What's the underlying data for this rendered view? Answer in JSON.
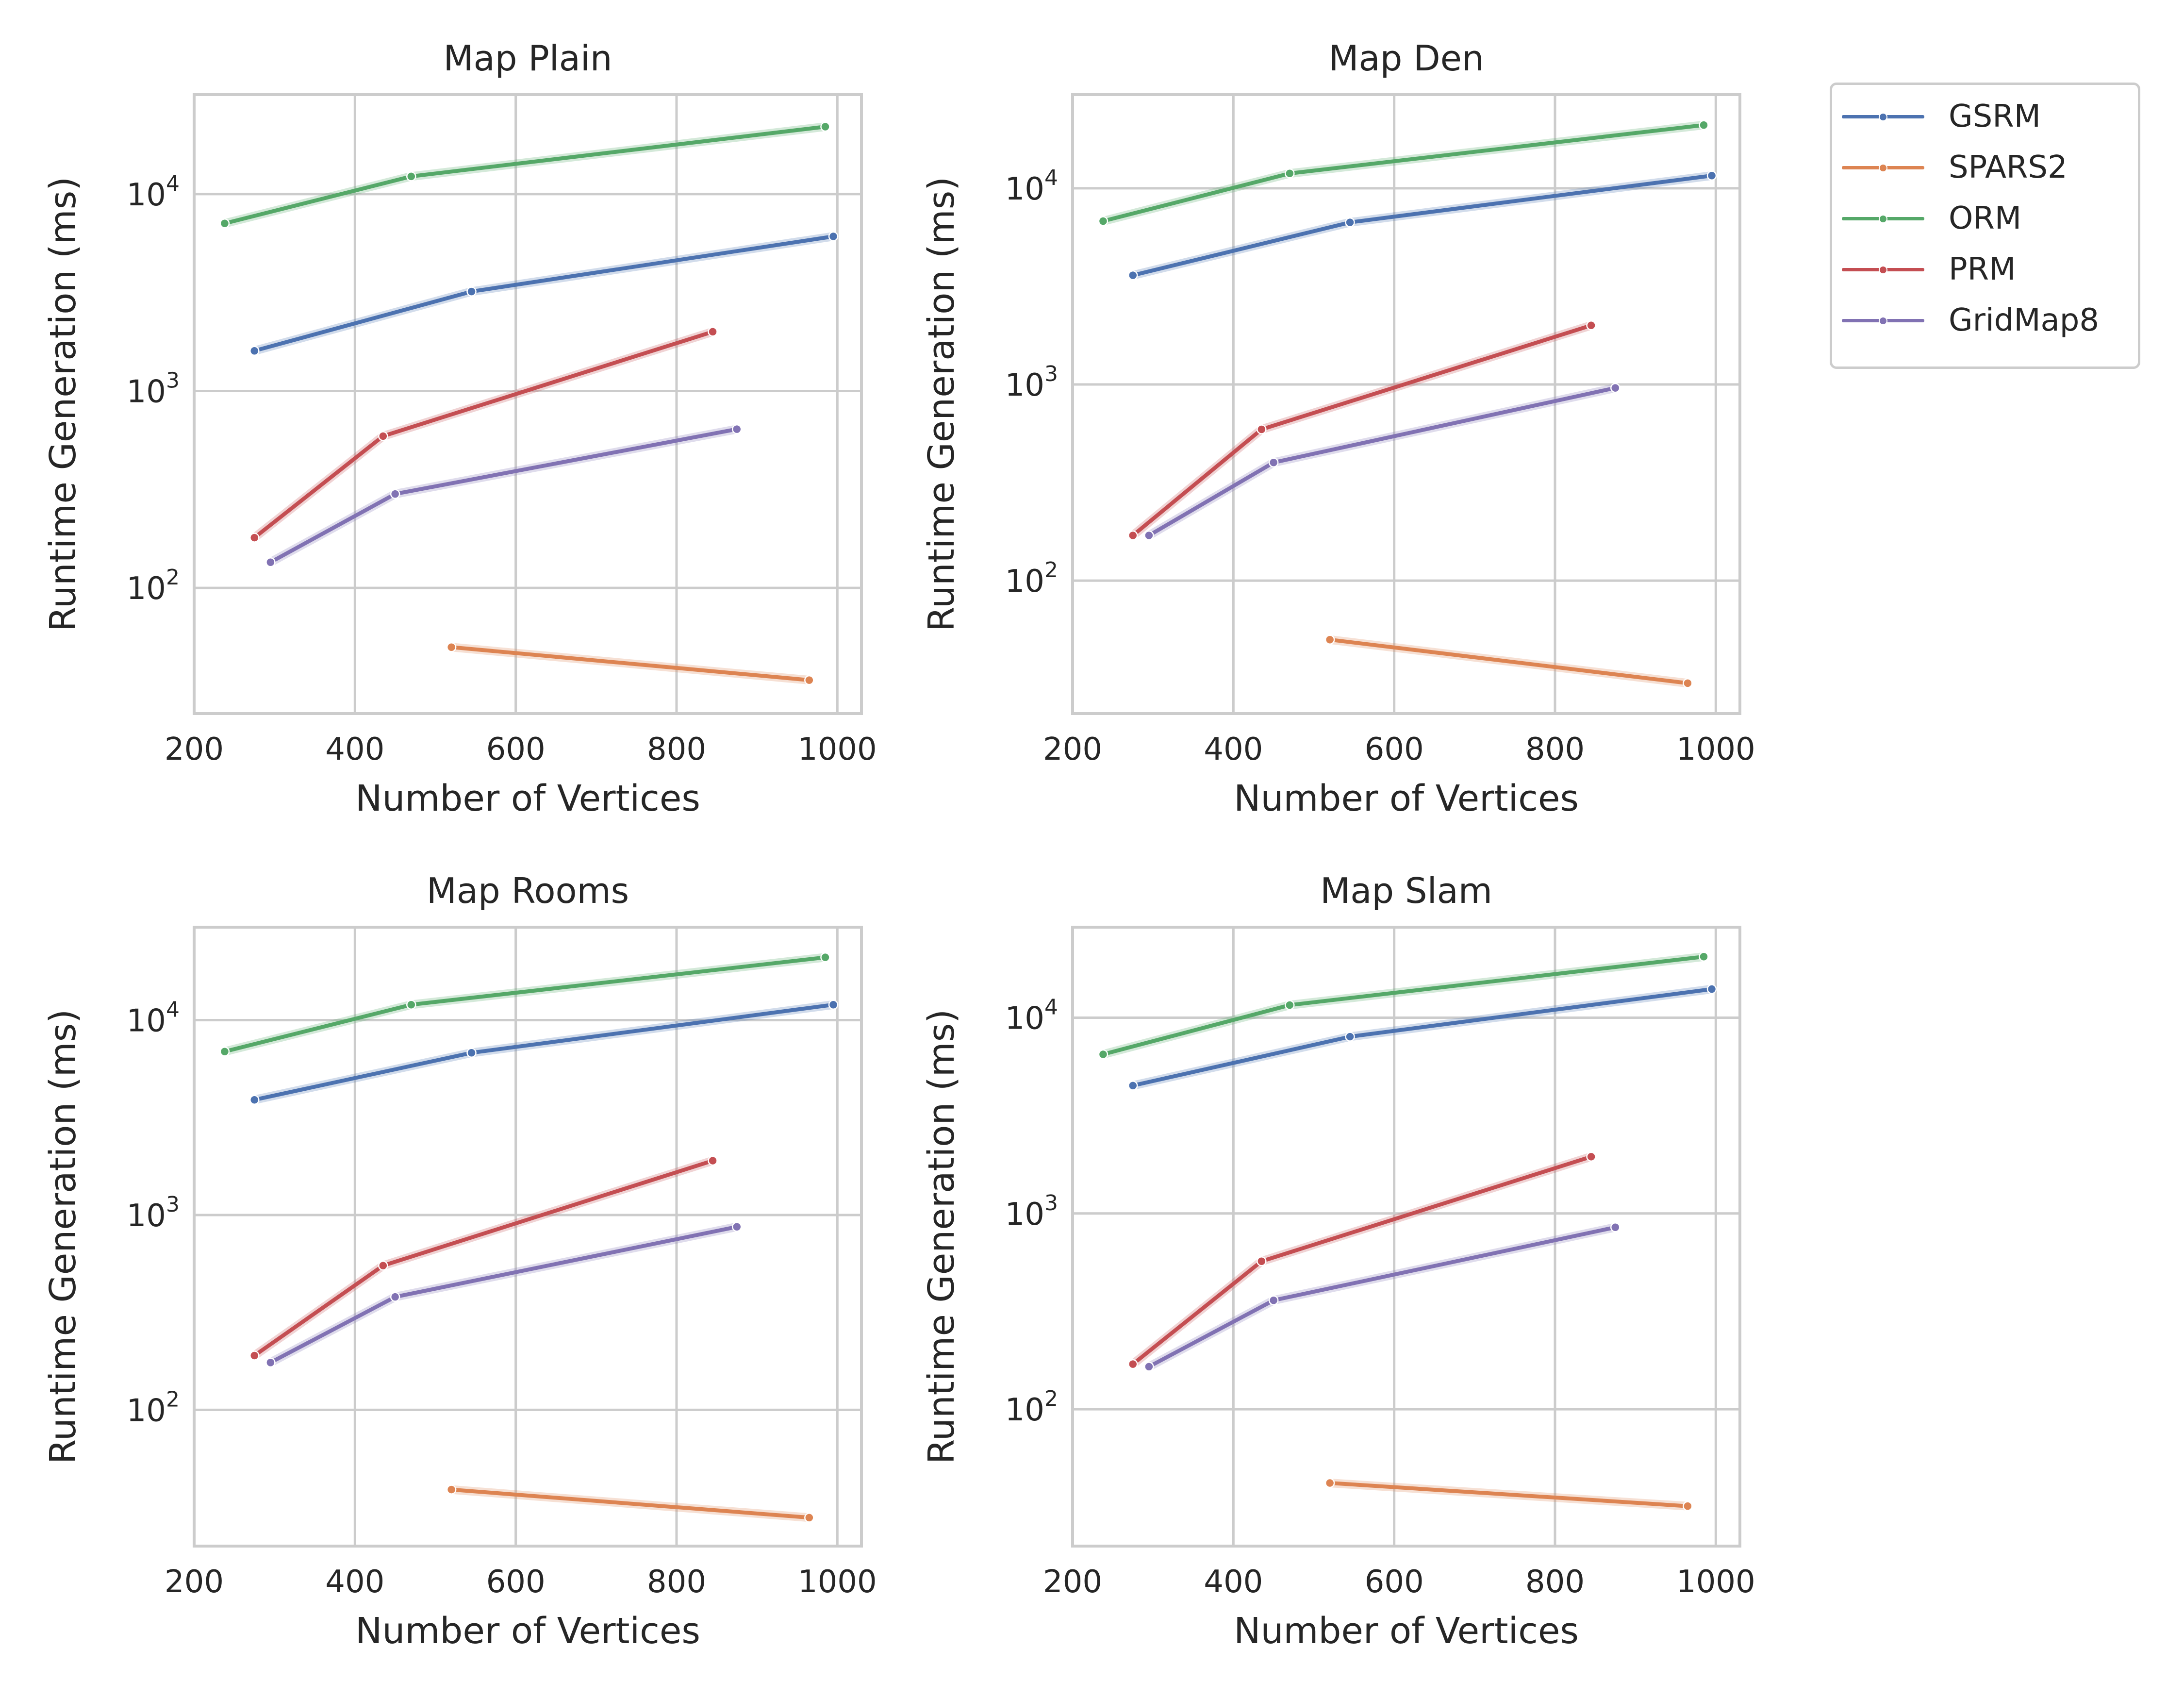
{
  "chart_data": [
    {
      "type": "line",
      "title": "Map Plain",
      "xlabel": "Number of Vertices",
      "ylabel": "Runtime Generation (ms)",
      "yscale": "log",
      "xlim": [
        200,
        1030
      ],
      "ylim": [
        23,
        32000
      ],
      "xticks": [
        "200",
        "400",
        "600",
        "800",
        "1000"
      ],
      "yticks": [
        {
          "base": "10",
          "exp": "2",
          "value": 100
        },
        {
          "base": "10",
          "exp": "3",
          "value": 1000
        },
        {
          "base": "10",
          "exp": "4",
          "value": 10000
        }
      ],
      "grid": true,
      "series": [
        {
          "name": "GSRM",
          "x": [
            275,
            545,
            995
          ],
          "y": [
            1600,
            3200,
            6100
          ]
        },
        {
          "name": "SPARS2",
          "x": [
            520,
            965
          ],
          "y": [
            50,
            34
          ]
        },
        {
          "name": "ORM",
          "x": [
            238,
            470,
            985
          ],
          "y": [
            7100,
            12300,
            22000
          ]
        },
        {
          "name": "PRM",
          "x": [
            275,
            435,
            845
          ],
          "y": [
            180,
            590,
            2000
          ]
        },
        {
          "name": "GridMap8",
          "x": [
            295,
            450,
            875
          ],
          "y": [
            135,
            300,
            640
          ]
        }
      ]
    },
    {
      "type": "line",
      "title": "Map Den",
      "xlabel": "Number of Vertices",
      "ylabel": "Runtime Generation (ms)",
      "yscale": "log",
      "xlim": [
        200,
        1030
      ],
      "ylim": [
        21,
        30000
      ],
      "xticks": [
        "200",
        "400",
        "600",
        "800",
        "1000"
      ],
      "yticks": [
        {
          "base": "10",
          "exp": "2",
          "value": 100
        },
        {
          "base": "10",
          "exp": "3",
          "value": 1000
        },
        {
          "base": "10",
          "exp": "4",
          "value": 10000
        }
      ],
      "grid": true,
      "series": [
        {
          "name": "GSRM",
          "x": [
            275,
            545,
            995
          ],
          "y": [
            3600,
            6700,
            11600
          ]
        },
        {
          "name": "SPARS2",
          "x": [
            520,
            965
          ],
          "y": [
            50,
            30
          ]
        },
        {
          "name": "ORM",
          "x": [
            238,
            470,
            985
          ],
          "y": [
            6800,
            11900,
            21000
          ]
        },
        {
          "name": "PRM",
          "x": [
            275,
            435,
            845
          ],
          "y": [
            170,
            590,
            2000
          ]
        },
        {
          "name": "GridMap8",
          "x": [
            295,
            450,
            875
          ],
          "y": [
            170,
            400,
            960
          ]
        }
      ]
    },
    {
      "type": "line",
      "title": "Map Rooms",
      "xlabel": "Number of Vertices",
      "ylabel": "Runtime Generation (ms)",
      "yscale": "log",
      "xlim": [
        200,
        1030
      ],
      "ylim": [
        20,
        30000
      ],
      "xticks": [
        "200",
        "400",
        "600",
        "800",
        "1000"
      ],
      "yticks": [
        {
          "base": "10",
          "exp": "2",
          "value": 100
        },
        {
          "base": "10",
          "exp": "3",
          "value": 1000
        },
        {
          "base": "10",
          "exp": "4",
          "value": 10000
        }
      ],
      "grid": true,
      "series": [
        {
          "name": "GSRM",
          "x": [
            275,
            545,
            995
          ],
          "y": [
            3900,
            6800,
            12000
          ]
        },
        {
          "name": "SPARS2",
          "x": [
            520,
            965
          ],
          "y": [
            39,
            28
          ]
        },
        {
          "name": "ORM",
          "x": [
            238,
            470,
            985
          ],
          "y": [
            6900,
            12000,
            21000
          ]
        },
        {
          "name": "PRM",
          "x": [
            275,
            435,
            845
          ],
          "y": [
            190,
            550,
            1900
          ]
        },
        {
          "name": "GridMap8",
          "x": [
            295,
            450,
            875
          ],
          "y": [
            175,
            380,
            870
          ]
        }
      ]
    },
    {
      "type": "line",
      "title": "Map Slam",
      "xlabel": "Number of Vertices",
      "ylabel": "Runtime Generation (ms)",
      "yscale": "log",
      "xlim": [
        200,
        1030
      ],
      "ylim": [
        20,
        29000
      ],
      "xticks": [
        "200",
        "400",
        "600",
        "800",
        "1000"
      ],
      "yticks": [
        {
          "base": "10",
          "exp": "2",
          "value": 100
        },
        {
          "base": "10",
          "exp": "3",
          "value": 1000
        },
        {
          "base": "10",
          "exp": "4",
          "value": 10000
        }
      ],
      "grid": true,
      "series": [
        {
          "name": "GSRM",
          "x": [
            275,
            545,
            995
          ],
          "y": [
            4500,
            8000,
            14000
          ]
        },
        {
          "name": "SPARS2",
          "x": [
            520,
            965
          ],
          "y": [
            42,
            32
          ]
        },
        {
          "name": "ORM",
          "x": [
            238,
            470,
            985
          ],
          "y": [
            6500,
            11600,
            20500
          ]
        },
        {
          "name": "PRM",
          "x": [
            275,
            435,
            845
          ],
          "y": [
            170,
            570,
            1950
          ]
        },
        {
          "name": "GridMap8",
          "x": [
            295,
            450,
            875
          ],
          "y": [
            165,
            360,
            850
          ]
        }
      ]
    }
  ],
  "legend": {
    "placement": "outside-top-right",
    "items": [
      {
        "label": "GSRM",
        "color": "#4c72b0"
      },
      {
        "label": "SPARS2",
        "color": "#dd8452"
      },
      {
        "label": "ORM",
        "color": "#55a868"
      },
      {
        "label": "PRM",
        "color": "#c44e52"
      },
      {
        "label": "GridMap8",
        "color": "#8172b3"
      }
    ]
  }
}
